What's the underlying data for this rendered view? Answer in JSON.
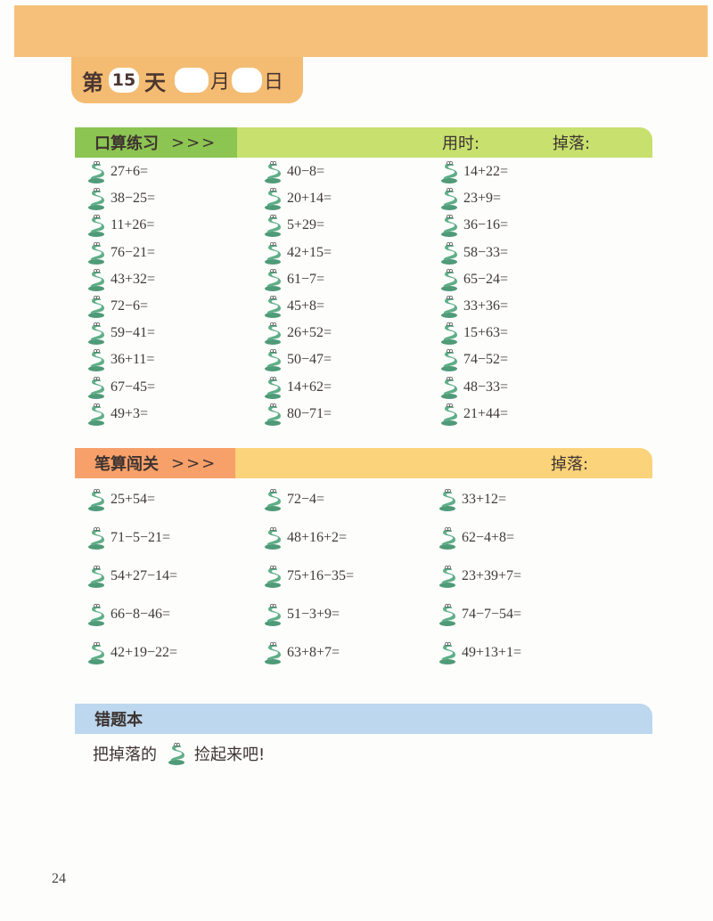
{
  "header": {
    "day_prefix": "第",
    "day_number": "15",
    "day_suffix": "天",
    "month_label": "月",
    "date_label": "日",
    "month_value": "",
    "date_value": ""
  },
  "oral": {
    "title": "口算练习",
    "arrows": ">>>",
    "time_label": "用时:",
    "dropped_label": "掉落:",
    "columns": [
      [
        "27+6=",
        "38−25=",
        "11+26=",
        "76−21=",
        "43+32=",
        "72−6=",
        "59−41=",
        "36+11=",
        "67−45=",
        "49+3="
      ],
      [
        "40−8=",
        "20+14=",
        "5+29=",
        "42+15=",
        "61−7=",
        "45+8=",
        "26+52=",
        "50−47=",
        "14+62=",
        "80−71="
      ],
      [
        "14+22=",
        "23+9=",
        "36−16=",
        "58−33=",
        "65−24=",
        "33+36=",
        "15+63=",
        "74−52=",
        "48−33=",
        "21+44="
      ]
    ]
  },
  "written": {
    "title": "笔算闯关",
    "arrows": ">>>",
    "dropped_label": "掉落:",
    "columns": [
      [
        "25+54=",
        "71−5−21=",
        "54+27−14=",
        "66−8−46=",
        "42+19−22="
      ],
      [
        "72−4=",
        "48+16+2=",
        "75+16−35=",
        "51−3+9=",
        "63+8+7="
      ],
      [
        "33+12=",
        "62−4+8=",
        "23+39+7=",
        "74−7−54=",
        "49+13+1="
      ]
    ]
  },
  "mistakes": {
    "title": "错题本",
    "hint_before": "把掉落的",
    "hint_after": "捡起来吧!"
  },
  "icons": {
    "problem_marker": "snake-icon"
  },
  "colors": {
    "header_orange": "#f7c07a",
    "oral_dark": "#8cc552",
    "oral_light": "#c7e06e",
    "written_dark": "#f7a06a",
    "written_light": "#fbd37a",
    "mistakes_blue": "#bcd7ee",
    "snake_green": "#5fae88"
  },
  "page_number": "24"
}
